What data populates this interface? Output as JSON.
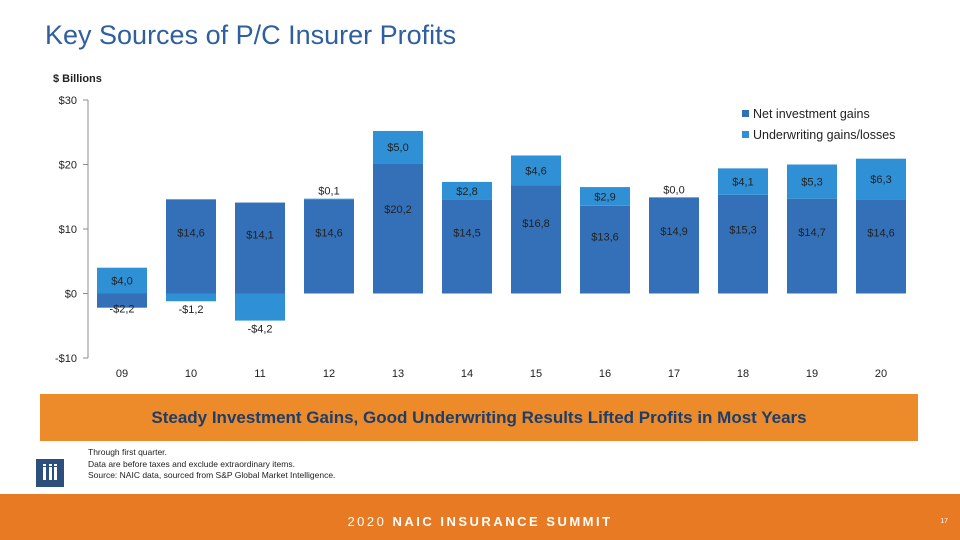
{
  "slide": {
    "title": "Key Sources of P/C Insurer Profits",
    "banner": "Steady Investment Gains, Good Underwriting Results Lifted Profits in Most Years",
    "notes": [
      "Through first quarter.",
      "Data are before taxes and exclude extraordinary items.",
      "Source: NAIC data, sourced from S&P Global Market Intelligence."
    ],
    "footer_year": "2020",
    "footer_name": "NAIC INSURANCE SUMMIT",
    "page_number": "17",
    "logo_icon": "iii-logo-icon"
  },
  "colors": {
    "title": "#2f5f9e",
    "investment": "#3470b7",
    "underwriting": "#2f90d6",
    "banner_bg": "#ed8a2a",
    "banner_text": "#1d3e6b",
    "footer_bg": "#e87a24"
  },
  "chart_data": {
    "type": "bar",
    "stacked": true,
    "unit_label": "$ Billions",
    "categories": [
      "09",
      "10",
      "11",
      "12",
      "13",
      "14",
      "15",
      "16",
      "17",
      "18",
      "19",
      "20"
    ],
    "ylim": [
      -10,
      30
    ],
    "yticks": [
      30,
      20,
      10,
      0,
      -10
    ],
    "ytick_labels": [
      "$30",
      "$20",
      "$10",
      "$0",
      "-$10"
    ],
    "series": [
      {
        "name": "Net investment gains",
        "values": [
          -2.2,
          14.6,
          14.1,
          14.6,
          20.2,
          14.5,
          16.8,
          13.6,
          14.9,
          15.3,
          14.7,
          14.6
        ],
        "labels": [
          "-$2,2",
          "$14,6",
          "$14,1",
          "$14,6",
          "$20,2",
          "$14,5",
          "$16,8",
          "$13,6",
          "$14,9",
          "$15,3",
          "$14,7",
          "$14,6"
        ]
      },
      {
        "name": "Underwriting gains/losses",
        "values": [
          4.0,
          -1.2,
          -4.2,
          0.1,
          5.0,
          2.8,
          4.6,
          2.9,
          0.0,
          4.1,
          5.3,
          6.3
        ],
        "labels": [
          "$4,0",
          "-$1,2",
          "-$4,2",
          "$0,1",
          "$5,0",
          "$2,8",
          "$4,6",
          "$2,9",
          "$0,0",
          "$4,1",
          "$5,3",
          "$6,3"
        ]
      }
    ],
    "legend_position": "top-right"
  }
}
